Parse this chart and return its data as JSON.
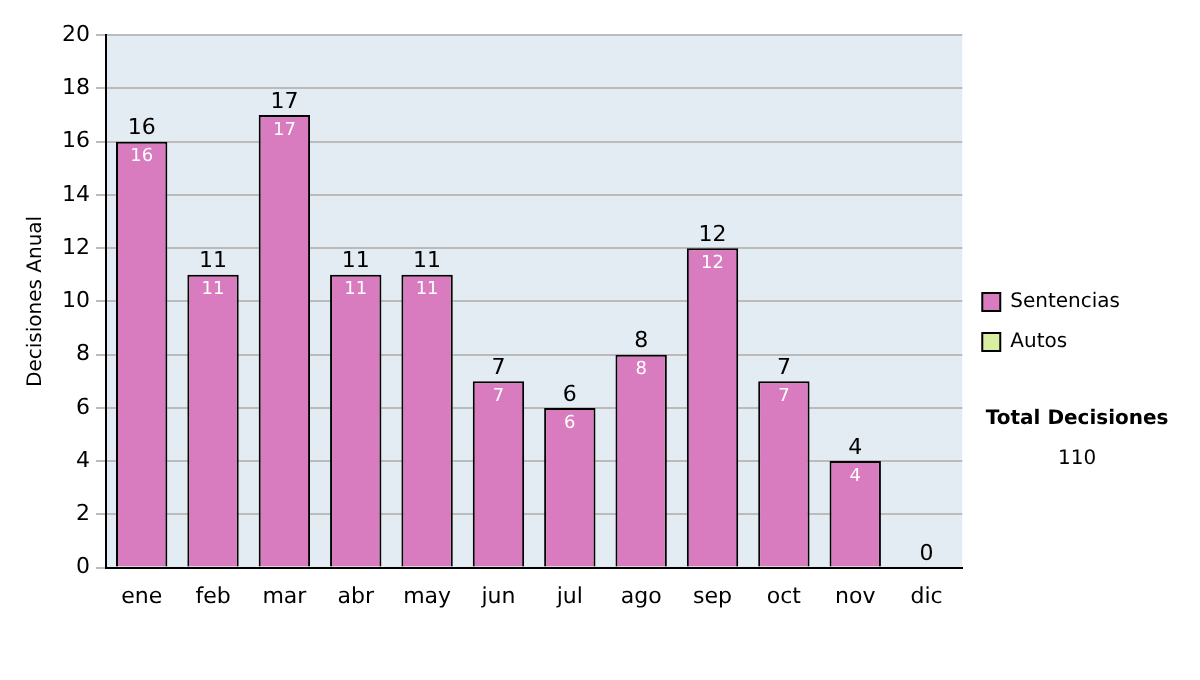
{
  "chart_data": {
    "type": "bar",
    "stacked": true,
    "ylabel": "Decisiones Anual",
    "categories": [
      "ene",
      "feb",
      "mar",
      "abr",
      "may",
      "jun",
      "jul",
      "ago",
      "sep",
      "oct",
      "nov",
      "dic"
    ],
    "series": [
      {
        "name": "Sentencias",
        "color": "#d97bbf",
        "values": [
          16,
          11,
          17,
          11,
          11,
          7,
          6,
          8,
          12,
          7,
          4,
          0
        ],
        "value_labels": [
          "16",
          "11",
          "17",
          "11",
          "11",
          "7",
          "6",
          "8",
          "12",
          "7",
          "4",
          null
        ]
      },
      {
        "name": "Autos",
        "color": "#d8eea0",
        "values": [
          0,
          0,
          0,
          0,
          0,
          0,
          0,
          0,
          0,
          0,
          0,
          0
        ]
      }
    ],
    "totals": [
      "16",
      "11",
      "17",
      "11",
      "11",
      "7",
      "6",
      "8",
      "12",
      "7",
      "4",
      "0"
    ],
    "ylim": [
      0,
      20
    ],
    "yticks": [
      0,
      2,
      4,
      6,
      8,
      10,
      12,
      14,
      16,
      18,
      20
    ],
    "grid": "y",
    "legend": "right",
    "annotations": [
      "Total Decisiones",
      "110"
    ]
  }
}
